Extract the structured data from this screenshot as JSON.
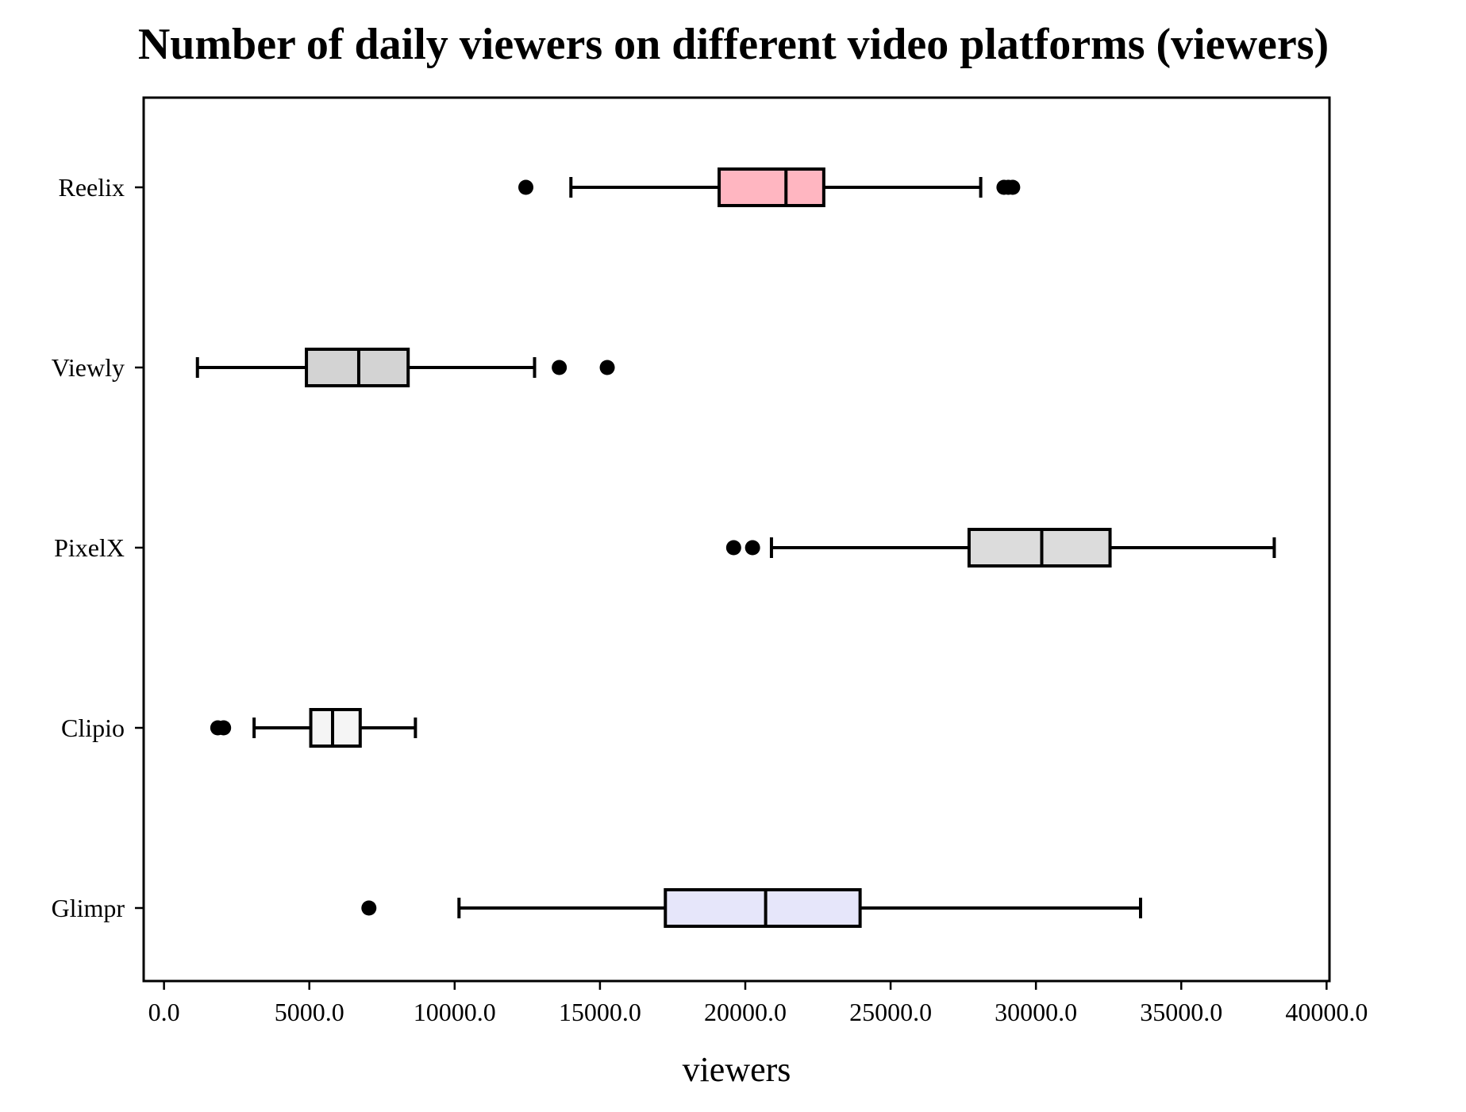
{
  "chart_data": {
    "type": "boxplot",
    "orientation": "horizontal",
    "title": "Number of daily viewers on different video platforms (viewers)",
    "xlabel": "viewers",
    "ylabel": "",
    "xlim": [
      -700,
      40100
    ],
    "x_ticks": [
      0,
      5000,
      10000,
      15000,
      20000,
      25000,
      30000,
      35000,
      40000
    ],
    "x_tick_labels": [
      "0.0",
      "5000.0",
      "10000.0",
      "15000.0",
      "20000.0",
      "25000.0",
      "30000.0",
      "35000.0",
      "40000.0"
    ],
    "grid": false,
    "legend": "none",
    "categories": [
      "Reelix",
      "Viewly",
      "PixelX",
      "Clipio",
      "Glimpr"
    ],
    "series": [
      {
        "category": "Reelix",
        "whisker_low": 14000,
        "q1": 19100,
        "median": 21400,
        "q3": 22700,
        "whisker_high": 28100,
        "outliers": [
          12450,
          28900,
          29050,
          29200
        ],
        "color": "#ffb6c1"
      },
      {
        "category": "Viewly",
        "whisker_low": 1150,
        "q1": 4900,
        "median": 6700,
        "q3": 8400,
        "whisker_high": 12750,
        "outliers": [
          13600,
          15250
        ],
        "color": "#d3d3d3"
      },
      {
        "category": "PixelX",
        "whisker_low": 20900,
        "q1": 27700,
        "median": 30200,
        "q3": 32550,
        "whisker_high": 38200,
        "outliers": [
          19600,
          20250
        ],
        "color": "#dcdcdc"
      },
      {
        "category": "Clipio",
        "whisker_low": 3100,
        "q1": 5050,
        "median": 5800,
        "q3": 6750,
        "whisker_high": 8650,
        "outliers": [
          1850,
          2050
        ],
        "color": "#f5f5f5"
      },
      {
        "category": "Glimpr",
        "whisker_low": 10150,
        "q1": 17250,
        "median": 20700,
        "q3": 23950,
        "whisker_high": 33600,
        "outliers": [
          7050
        ],
        "color": "#e6e6fa"
      }
    ]
  }
}
